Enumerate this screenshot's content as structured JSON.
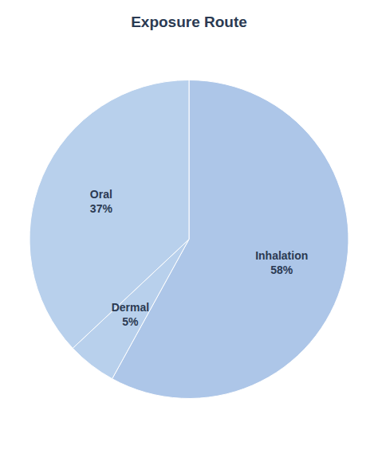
{
  "chart_data": {
    "type": "pie",
    "title": "Exposure Route",
    "categories": [
      "Inhalation",
      "Dermal",
      "Oral"
    ],
    "values": [
      58,
      5,
      37
    ],
    "value_labels": [
      "58%",
      "5%",
      "37%"
    ],
    "colors": [
      "#adc6e8",
      "#b8d0ec",
      "#b8d0ec"
    ],
    "data_labels": true
  }
}
